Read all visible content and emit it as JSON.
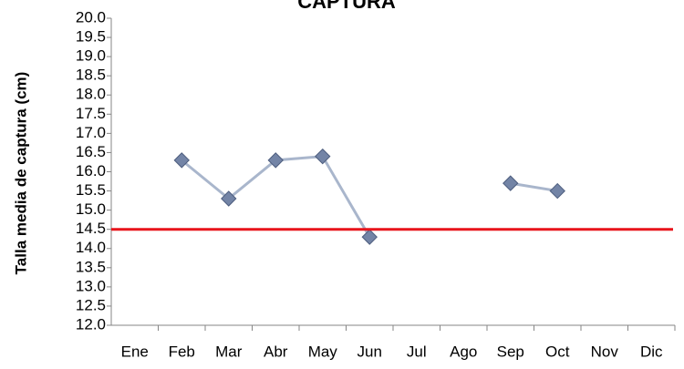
{
  "chart_data": {
    "type": "line",
    "title": "CAPTURA",
    "y_label": "Talla media de captura (cm)",
    "categories": [
      "Ene",
      "Feb",
      "Mar",
      "Abr",
      "May",
      "Jun",
      "Jul",
      "Ago",
      "Sep",
      "Oct",
      "Nov",
      "Dic"
    ],
    "series": [
      {
        "color": "#a9b6cc",
        "marker_color": "#7384a6",
        "values": [
          null,
          16.3,
          15.3,
          16.3,
          16.4,
          14.3,
          null,
          null,
          15.7,
          15.5,
          null,
          null
        ]
      }
    ],
    "reference_line": {
      "value": 14.5,
      "color": "#e8141b"
    },
    "ylim": [
      12,
      20
    ],
    "yticks": [
      {
        "value": 12,
        "label": "12.0"
      },
      {
        "value": 12.5,
        "label": "12.5"
      },
      {
        "value": 13,
        "label": "13.0"
      },
      {
        "value": 13.5,
        "label": "13.5"
      },
      {
        "value": 14,
        "label": "14.0"
      },
      {
        "value": 14.5,
        "label": "14.5"
      },
      {
        "value": 15,
        "label": "15.0"
      },
      {
        "value": 15.5,
        "label": "15.5"
      },
      {
        "value": 16,
        "label": "16.0"
      },
      {
        "value": 16.5,
        "label": "16.5"
      },
      {
        "value": 17,
        "label": "17.0"
      },
      {
        "value": 17.5,
        "label": "17.5"
      },
      {
        "value": 18,
        "label": "18.0"
      },
      {
        "value": 18.5,
        "label": "18.5"
      },
      {
        "value": 19,
        "label": "19.0"
      },
      {
        "value": 19.5,
        "label": "19.5"
      },
      {
        "value": 20,
        "label": "20.0"
      }
    ],
    "grid": false
  }
}
